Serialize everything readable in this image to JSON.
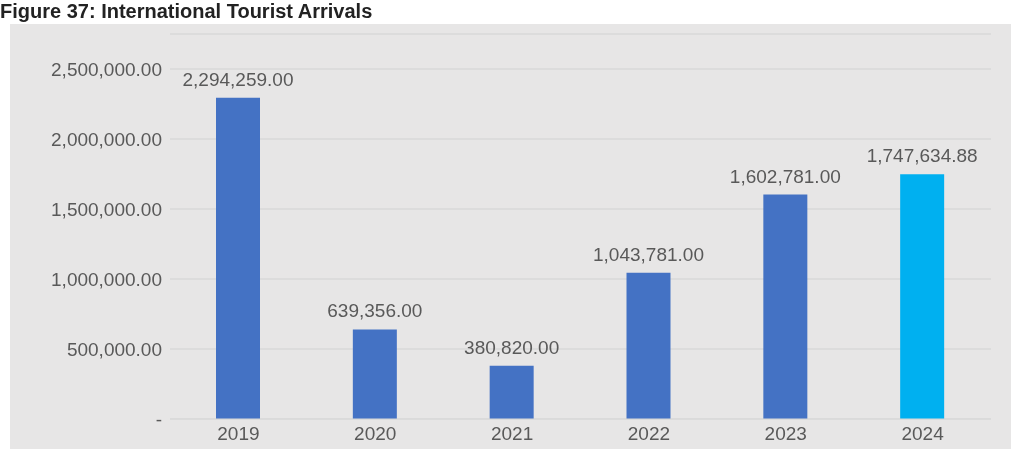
{
  "chart_data": {
    "type": "bar",
    "title": "Figure 37: International Tourist Arrivals",
    "categories": [
      "2019",
      "2020",
      "2021",
      "2022",
      "2023",
      "2024"
    ],
    "values": [
      2294259.0,
      639356.0,
      380820.0,
      1043781.0,
      1602781.0,
      1747634.88
    ],
    "colors": [
      "#4472c4",
      "#4472c4",
      "#4472c4",
      "#4472c4",
      "#4472c4",
      "#00b0f0"
    ],
    "ylim": [
      0,
      2750000
    ],
    "yticks": [
      {
        "value": 0,
        "label": "-"
      },
      {
        "value": 500000,
        "label": "500,000.00"
      },
      {
        "value": 1000000,
        "label": "1,000,000.00"
      },
      {
        "value": 1500000,
        "label": "1,500,000.00"
      },
      {
        "value": 2000000,
        "label": "2,000,000.00"
      },
      {
        "value": 2500000,
        "label": "2,500,000.00"
      }
    ],
    "value_labels": [
      "2,294,259.00",
      "639,356.00",
      "380,820.00",
      "1,043,781.00",
      "1,602,781.00",
      "1,747,634.88"
    ],
    "grid": "y"
  }
}
